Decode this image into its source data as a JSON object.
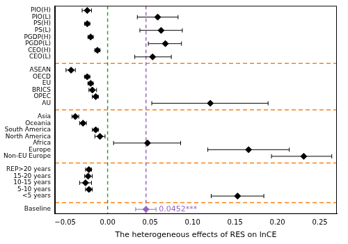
{
  "chart_data": {
    "type": "forest",
    "xlabel": "The heterogeneous effects of RES on lnCE",
    "categories": [
      "PIO(H)",
      "PIO(L)",
      "PS(H)",
      "PS(L)",
      "PGDP(H)",
      "PGDP(L)",
      "CEO(H)",
      "CEO(L)",
      null,
      "ASEAN",
      "OECD",
      "EU",
      "BRICS",
      "OPEC",
      "AU",
      null,
      "Asia",
      "Oceania",
      "South America",
      "North America",
      "Africa",
      "Europe",
      "Non-EU Europe",
      null,
      "REP>20 years",
      "15-20 years",
      "10-15 years",
      "5-10 years",
      "<5 years",
      null,
      "Baseline"
    ],
    "values": [
      -0.024,
      0.059,
      -0.024,
      0.063,
      -0.02,
      0.068,
      -0.012,
      0.053,
      null,
      -0.043,
      -0.024,
      -0.02,
      -0.018,
      -0.014,
      0.121,
      null,
      -0.038,
      -0.029,
      -0.014,
      -0.009,
      0.047,
      0.166,
      0.231,
      null,
      -0.022,
      -0.023,
      -0.026,
      -0.022,
      0.153,
      null,
      0.0452
    ],
    "ci_low": [
      -0.03,
      0.035,
      -0.027,
      0.038,
      -0.023,
      0.048,
      -0.015,
      0.032,
      null,
      -0.049,
      -0.027,
      -0.023,
      -0.022,
      -0.018,
      0.052,
      null,
      -0.042,
      -0.033,
      -0.018,
      -0.015,
      0.007,
      0.118,
      0.193,
      null,
      -0.026,
      -0.027,
      -0.033,
      -0.026,
      0.122,
      null,
      0.033
    ],
    "ci_high": [
      -0.019,
      0.083,
      -0.021,
      0.088,
      -0.017,
      0.087,
      -0.009,
      0.075,
      null,
      -0.038,
      -0.021,
      -0.017,
      -0.013,
      -0.011,
      0.189,
      null,
      -0.034,
      -0.025,
      -0.011,
      -0.003,
      0.086,
      0.214,
      0.264,
      null,
      -0.019,
      -0.018,
      -0.019,
      -0.018,
      0.184,
      null,
      0.057
    ],
    "colors": [
      "#000000",
      "#000000",
      "#000000",
      "#000000",
      "#000000",
      "#000000",
      "#000000",
      "#000000",
      null,
      "#000000",
      "#000000",
      "#000000",
      "#000000",
      "#000000",
      "#000000",
      null,
      "#000000",
      "#000000",
      "#000000",
      "#000000",
      "#000000",
      "#000000",
      "#000000",
      null,
      "#000000",
      "#000000",
      "#000000",
      "#000000",
      "#000000",
      null,
      "#9467bd"
    ],
    "marker": "diamond",
    "xlim": [
      -0.062,
      0.27
    ],
    "xticks": [
      {
        "value": -0.05,
        "label": "−0.05"
      },
      {
        "value": 0,
        "label": "0.00"
      },
      0.05,
      {
        "value": 0.1,
        "label": "0.10"
      },
      0.15,
      {
        "value": 0.2,
        "label": "0.20"
      },
      0.25
    ],
    "vlines": [
      {
        "value": 0,
        "color": "#2ca02c"
      },
      {
        "value": 0.0452,
        "color": "#9467bd"
      }
    ],
    "separator_color": "#ff7f0e",
    "annotations": [
      {
        "text": "0.0452***",
        "category": "Baseline",
        "color": "#9467bd"
      }
    ]
  }
}
